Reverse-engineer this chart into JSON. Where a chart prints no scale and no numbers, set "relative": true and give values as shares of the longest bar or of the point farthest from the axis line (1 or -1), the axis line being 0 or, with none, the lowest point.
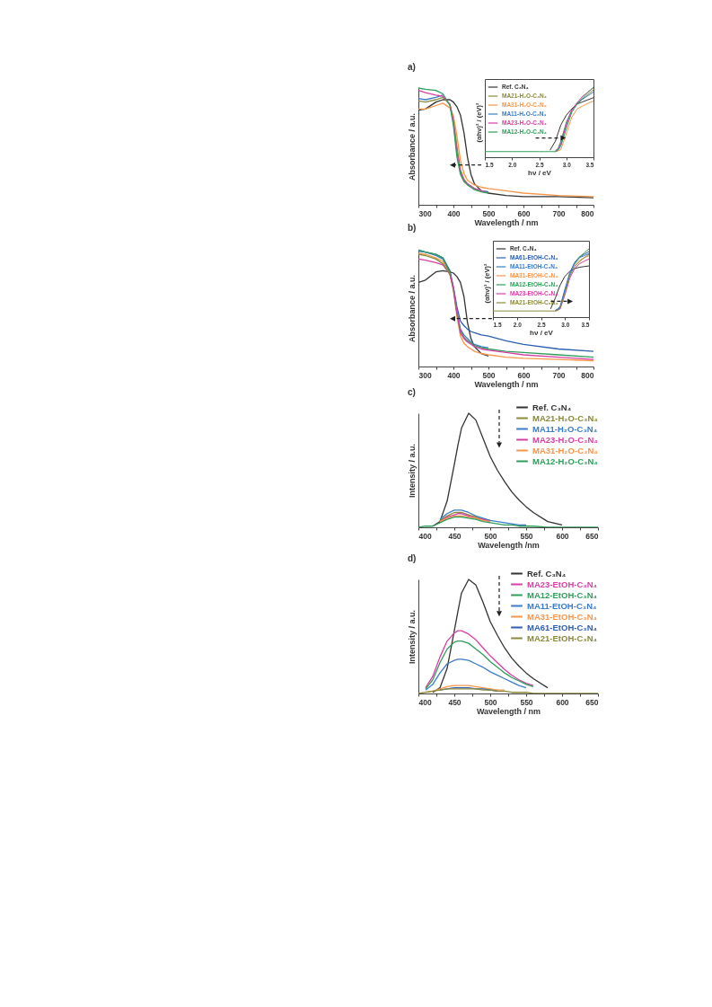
{
  "chart_data": [
    {
      "type": "line",
      "title": "a)",
      "xlabel": "Wavelength / nm",
      "ylabel": "Absorbance / a.u.",
      "relative": true,
      "tick_labels": "x",
      "xlim": [
        300,
        800
      ],
      "xticks": [
        300,
        {
          "value": 350,
          "label": null
        },
        400,
        {
          "value": 450,
          "label": null
        },
        500,
        {
          "value": 550,
          "label": null
        },
        600,
        {
          "value": 650,
          "label": null
        },
        700,
        {
          "value": 750,
          "label": null
        },
        800
      ],
      "x": [
        300,
        320,
        350,
        370,
        390,
        400,
        410,
        420,
        430,
        440,
        450,
        460,
        480,
        500,
        550,
        600,
        700,
        800
      ],
      "series": [
        {
          "color": "#333333",
          "values": [
            0.81,
            0.82,
            0.88,
            0.9,
            0.9,
            0.88,
            0.84,
            0.77,
            0.62,
            0.41,
            0.26,
            0.18,
            0.12,
            0.1,
            0.08,
            0.07,
            0.07,
            0.06
          ]
        },
        {
          "color": "#8a8a3a",
          "values": [
            0.89,
            0.88,
            0.9,
            0.92,
            0.86,
            0.74,
            0.5,
            0.3,
            0.22,
            0.18,
            0.16,
            0.14,
            0.12,
            0.11,
            null,
            null,
            null,
            null
          ]
        },
        {
          "color": "#f7964a",
          "values": [
            0.82,
            0.82,
            0.85,
            0.87,
            0.83,
            0.76,
            0.59,
            0.38,
            0.27,
            0.21,
            0.19,
            0.17,
            0.15,
            0.14,
            0.12,
            0.1,
            0.08,
            0.07
          ]
        },
        {
          "color": "#3a7cc8",
          "values": [
            0.91,
            0.9,
            0.92,
            0.94,
            null,
            null,
            null,
            null,
            null,
            null,
            null,
            null,
            0.12,
            0.11,
            null,
            null,
            null,
            null
          ]
        },
        {
          "color": "#d63fa5",
          "values": [
            0.98,
            0.96,
            0.94,
            0.93,
            0.86,
            0.71,
            0.45,
            0.28,
            0.21,
            0.18,
            0.16,
            0.14,
            0.12,
            0.1,
            null,
            null,
            null,
            null
          ]
        },
        {
          "color": "#2f9e5a",
          "values": [
            1.0,
            0.99,
            0.98,
            0.95,
            0.85,
            0.68,
            0.41,
            0.26,
            0.2,
            0.17,
            0.15,
            0.13,
            0.11,
            0.1,
            null,
            null,
            null,
            null
          ]
        }
      ]
    },
    {
      "type": "line",
      "xlabel": "hν / eV",
      "ylabel": "(αhν)² / (eV)²",
      "relative": true,
      "tick_labels": "x",
      "legend": "top left",
      "xlim": [
        1.5,
        3.5
      ],
      "xticks": [
        1.5,
        {
          "value": 2,
          "label": "2.0"
        },
        2.5,
        {
          "value": 3,
          "label": "3.0"
        },
        3.5
      ],
      "x": [
        1.5,
        2.0,
        2.5,
        2.6,
        2.7,
        2.8,
        2.85,
        2.9,
        3.0,
        3.1,
        3.2,
        3.3,
        3.4,
        3.5
      ],
      "series": [
        {
          "name": "Ref. C₃N₄",
          "color": "#333333",
          "values": [
            null,
            null,
            null,
            null,
            0.1,
            0.23,
            0.35,
            0.46,
            0.6,
            0.69,
            0.76,
            0.79,
            0.82,
            0.85
          ]
        },
        {
          "name": "MA21-H₂O-C₃N₄",
          "color": "#8a8a3a",
          "values": [
            null,
            null,
            null,
            null,
            null,
            0.09,
            0.13,
            0.23,
            0.5,
            0.67,
            0.76,
            0.83,
            0.9,
            0.96
          ]
        },
        {
          "name": "MA31-H₂O-C₃N₄",
          "color": "#f7964a",
          "values": [
            null,
            null,
            null,
            null,
            null,
            0.08,
            0.09,
            0.11,
            0.34,
            0.57,
            0.69,
            0.73,
            0.77,
            0.8
          ]
        },
        {
          "name": "MA11-H₂O-C₃N₄",
          "color": "#3a7cc8",
          "values": [
            null,
            null,
            null,
            null,
            null,
            0.09,
            0.12,
            0.21,
            0.48,
            0.67,
            0.77,
            0.83,
            0.88,
            0.93
          ]
        },
        {
          "name": "MA23-H₂O-C₃N₄",
          "color": "#d63fa5",
          "values": [
            null,
            null,
            null,
            null,
            null,
            0.08,
            0.11,
            0.18,
            0.46,
            0.67,
            0.78,
            0.87,
            0.93,
            0.99
          ]
        },
        {
          "name": "MA12-H₂O-C₃N₄",
          "color": "#2f9e5a",
          "values": [
            0.08,
            0.08,
            0.08,
            0.08,
            0.08,
            0.08,
            0.1,
            0.16,
            0.41,
            0.64,
            0.76,
            0.85,
            0.93,
            1.0
          ]
        }
      ]
    },
    {
      "type": "line",
      "title": "b)",
      "xlabel": "Wavelength / nm",
      "ylabel": "Absorbance / a.u.",
      "relative": true,
      "tick_labels": "x",
      "xlim": [
        300,
        800
      ],
      "xticks": [
        300,
        {
          "value": 350,
          "label": null
        },
        400,
        {
          "value": 450,
          "label": null
        },
        500,
        {
          "value": 550,
          "label": null
        },
        600,
        {
          "value": 650,
          "label": null
        },
        700,
        {
          "value": 750,
          "label": null
        },
        800
      ],
      "x": [
        300,
        320,
        350,
        370,
        390,
        400,
        410,
        420,
        430,
        440,
        450,
        460,
        480,
        500,
        550,
        600,
        700,
        800
      ],
      "series": [
        {
          "color": "#333333",
          "values": [
            0.72,
            0.74,
            0.81,
            0.82,
            0.81,
            0.8,
            0.77,
            0.72,
            0.6,
            0.38,
            0.24,
            0.17,
            0.11,
            0.09,
            null,
            null,
            null,
            null
          ]
        },
        {
          "color": "#2c5fb0",
          "values": [
            0.99,
            0.98,
            0.96,
            0.93,
            0.82,
            0.68,
            0.51,
            0.39,
            0.35,
            0.32,
            0.3,
            0.29,
            0.27,
            0.26,
            0.22,
            0.19,
            0.15,
            0.13
          ]
        },
        {
          "color": "#3a7cc8",
          "values": [
            0.99,
            0.98,
            0.95,
            0.92,
            0.8,
            0.67,
            0.47,
            0.32,
            0.27,
            0.24,
            0.21,
            0.19,
            0.17,
            0.16,
            null,
            null,
            null,
            null
          ]
        },
        {
          "color": "#f7964a",
          "values": [
            0.97,
            0.96,
            0.93,
            0.9,
            0.79,
            0.65,
            0.43,
            0.26,
            0.2,
            0.17,
            0.15,
            0.13,
            0.11,
            0.1,
            0.08,
            0.07,
            0.06,
            0.05
          ]
        },
        {
          "color": "#2f9e5a",
          "values": [
            1.0,
            0.98,
            0.96,
            0.93,
            0.8,
            0.66,
            0.46,
            0.31,
            0.25,
            0.22,
            0.2,
            0.18,
            0.16,
            0.15,
            0.13,
            0.12,
            0.1,
            0.08
          ]
        },
        {
          "color": "#d63fa5",
          "values": [
            0.92,
            0.91,
            0.89,
            0.87,
            0.79,
            0.67,
            0.46,
            0.29,
            0.24,
            0.21,
            0.19,
            0.17,
            0.15,
            0.14,
            0.12,
            0.1,
            0.08,
            0.06
          ]
        },
        {
          "color": "#8a8a3a",
          "values": [
            0.96,
            0.95,
            0.92,
            0.88,
            0.79,
            null,
            null,
            null,
            null,
            null,
            null,
            null,
            null,
            null,
            null,
            null,
            null,
            null
          ]
        }
      ]
    },
    {
      "type": "line",
      "xlabel": "hν / eV",
      "ylabel": "(αhν)² / (eV)²",
      "relative": true,
      "tick_labels": "x",
      "legend": "top left",
      "xlim": [
        1.5,
        3.5
      ],
      "xticks": [
        1.5,
        {
          "value": 2,
          "label": "2.0"
        },
        2.5,
        {
          "value": 3,
          "label": "3.0"
        },
        3.5
      ],
      "x": [
        1.5,
        2.0,
        2.5,
        2.6,
        2.7,
        2.8,
        2.85,
        2.9,
        3.0,
        3.1,
        3.2,
        3.3,
        3.4,
        3.5
      ],
      "series": [
        {
          "name": "Ref. C₃N₄",
          "color": "#333333",
          "values": [
            null,
            null,
            null,
            null,
            0.12,
            0.28,
            0.38,
            0.47,
            0.6,
            0.67,
            0.71,
            0.73,
            0.74,
            0.75
          ]
        },
        {
          "name": "MA61-EtOH-C₃N₄",
          "color": "#2c5fb0",
          "values": [
            null,
            null,
            null,
            null,
            null,
            0.1,
            0.12,
            0.16,
            0.41,
            0.65,
            0.8,
            0.88,
            0.92,
            0.96
          ]
        },
        {
          "name": "MA11-EtOH-C₃N₄",
          "color": "#3a7cc8",
          "values": [
            null,
            null,
            null,
            null,
            null,
            0.1,
            0.11,
            0.14,
            0.39,
            0.62,
            0.78,
            0.87,
            0.9,
            0.93
          ]
        },
        {
          "name": "MA31-EtOH-C₃N₄",
          "color": "#f7964a",
          "values": [
            null,
            null,
            null,
            null,
            null,
            null,
            null,
            null,
            null,
            null,
            0.75,
            0.83,
            0.87,
            0.9
          ]
        },
        {
          "name": "MA12-EtOH-C₃N₄",
          "color": "#2f9e5a",
          "values": [
            null,
            null,
            null,
            null,
            null,
            null,
            null,
            null,
            null,
            null,
            0.78,
            0.88,
            0.94,
            1.0
          ]
        },
        {
          "name": "MA23-EtOH-C₃N₄",
          "color": "#d63fa5",
          "values": [
            null,
            null,
            null,
            null,
            null,
            0.09,
            0.1,
            0.12,
            0.33,
            0.57,
            0.71,
            0.78,
            0.82,
            0.85
          ]
        },
        {
          "name": "MA21-EtOH-C₃N₄",
          "color": "#8a8a3a",
          "values": [
            0.09,
            0.09,
            0.09,
            0.09,
            0.09,
            0.09,
            0.1,
            0.13,
            0.35,
            0.6,
            0.74,
            0.81,
            0.87,
            0.92
          ]
        }
      ]
    },
    {
      "type": "line",
      "title": "c)",
      "xlabel": "Wavelength /nm",
      "ylabel": "Intensity / a.u.",
      "relative": true,
      "tick_labels": "x",
      "legend": "top right",
      "xlim": [
        400,
        650
      ],
      "xticks": [
        400,
        {
          "value": 425,
          "label": null
        },
        450,
        {
          "value": 475,
          "label": null
        },
        500,
        {
          "value": 525,
          "label": null
        },
        550,
        {
          "value": 575,
          "label": null
        },
        600,
        {
          "value": 625,
          "label": null
        },
        650
      ],
      "x": [
        400,
        410,
        420,
        430,
        440,
        450,
        455,
        460,
        470,
        480,
        490,
        500,
        510,
        520,
        530,
        540,
        550,
        560,
        580,
        600,
        650
      ],
      "series": [
        {
          "name": "Ref. C₃N₄",
          "color": "#333333",
          "values": [
            null,
            null,
            0.01,
            0.05,
            0.23,
            0.55,
            0.72,
            0.87,
            1.0,
            0.94,
            0.78,
            0.62,
            0.5,
            0.4,
            0.31,
            0.24,
            0.18,
            0.13,
            0.05,
            0.02,
            null
          ]
        },
        {
          "name": "MA21-H₂O-C₃N₄",
          "color": "#8a8a3a",
          "values": [
            null,
            null,
            null,
            0.06,
            0.1,
            0.13,
            0.13,
            0.13,
            0.11,
            0.09,
            0.07,
            0.06,
            null,
            null,
            null,
            null,
            null,
            null,
            null,
            null,
            null
          ]
        },
        {
          "name": "MA11-H₂O-C₃N₄",
          "color": "#3a7cc8",
          "values": [
            null,
            null,
            null,
            0.07,
            0.12,
            0.15,
            0.15,
            0.15,
            0.13,
            0.1,
            0.08,
            0.06,
            0.05,
            0.04,
            0.03,
            0.02,
            0.02,
            null,
            null,
            null,
            null
          ]
        },
        {
          "name": "MA23-H₂O-C₃N₄",
          "color": "#d63fa5",
          "values": [
            null,
            null,
            null,
            0.05,
            0.09,
            0.11,
            0.12,
            0.12,
            0.1,
            0.08,
            0.07,
            0.05,
            null,
            null,
            null,
            null,
            null,
            null,
            null,
            null,
            null
          ]
        },
        {
          "name": "MA31-H₂O-C₃N₄",
          "color": "#f7964a",
          "values": [
            null,
            null,
            null,
            0.05,
            0.08,
            0.1,
            0.1,
            0.1,
            0.09,
            0.08,
            0.06,
            0.05,
            null,
            null,
            null,
            null,
            null,
            null,
            null,
            null,
            null
          ]
        },
        {
          "name": "MA12-H₂O-C₃N₄",
          "color": "#2f9e5a",
          "values": [
            0,
            0.01,
            0.01,
            0.04,
            0.07,
            0.09,
            0.09,
            0.09,
            0.08,
            0.07,
            0.05,
            0.04,
            0.03,
            0.02,
            0.02,
            0.01,
            0.01,
            0.01,
            0,
            0,
            0
          ]
        }
      ]
    },
    {
      "type": "line",
      "title": "d)",
      "xlabel": "Wavelength / nm",
      "ylabel": "Intensity / a.u.",
      "relative": true,
      "tick_labels": "x",
      "legend": "top right",
      "xlim": [
        400,
        650
      ],
      "xticks": [
        400,
        {
          "value": 425,
          "label": null
        },
        450,
        {
          "value": 475,
          "label": null
        },
        500,
        {
          "value": 525,
          "label": null
        },
        550,
        {
          "value": 575,
          "label": null
        },
        600,
        {
          "value": 625,
          "label": null
        },
        650
      ],
      "x": [
        400,
        410,
        420,
        430,
        440,
        450,
        455,
        460,
        470,
        480,
        490,
        500,
        510,
        520,
        530,
        540,
        550,
        560,
        580,
        600,
        650
      ],
      "series": [
        {
          "name": "Ref. C₃N₄",
          "color": "#333333",
          "values": [
            null,
            null,
            0.01,
            0.05,
            0.22,
            0.55,
            0.72,
            0.88,
            1.0,
            0.95,
            0.8,
            0.63,
            0.51,
            0.4,
            0.31,
            0.24,
            0.18,
            0.13,
            0.05,
            null,
            null
          ]
        },
        {
          "name": "MA23-EtOH-C₃N₄",
          "color": "#d63fa5",
          "values": [
            null,
            0.05,
            0.15,
            0.32,
            0.46,
            0.53,
            0.55,
            0.55,
            0.52,
            0.47,
            0.4,
            0.33,
            0.27,
            0.21,
            0.16,
            0.12,
            0.09,
            0.07,
            null,
            null,
            null
          ]
        },
        {
          "name": "MA12-EtOH-C₃N₄",
          "color": "#2f9e5a",
          "values": [
            null,
            0.04,
            0.12,
            0.27,
            0.39,
            0.45,
            0.46,
            0.46,
            0.44,
            0.39,
            0.34,
            0.28,
            0.23,
            0.18,
            0.14,
            0.11,
            0.08,
            0.06,
            null,
            null,
            null
          ]
        },
        {
          "name": "MA11-EtOH-C₃N₄",
          "color": "#3a7cc8",
          "values": [
            null,
            0.03,
            0.08,
            0.18,
            0.26,
            0.29,
            0.3,
            0.3,
            0.29,
            0.26,
            0.23,
            0.19,
            0.16,
            0.13,
            0.1,
            0.07,
            0.05,
            null,
            null,
            null,
            null
          ]
        },
        {
          "name": "MA31-EtOH-C₃N₄",
          "color": "#f7964a",
          "values": [
            null,
            0.01,
            0.02,
            0.04,
            0.06,
            0.07,
            0.07,
            0.07,
            0.07,
            0.06,
            0.05,
            0.04,
            0.03,
            0.03,
            null,
            null,
            null,
            null,
            null,
            null,
            null
          ]
        },
        {
          "name": "MA61-EtOH-C₃N₄",
          "color": "#2c5fb0",
          "values": [
            null,
            null,
            null,
            0.03,
            0.04,
            0.05,
            0.05,
            0.05,
            0.05,
            0.04,
            0.04,
            0.03,
            0.02,
            null,
            null,
            null,
            null,
            null,
            null,
            null,
            null
          ]
        },
        {
          "name": "MA21-EtOH-C₃N₄",
          "color": "#8a8a3a",
          "values": [
            0,
            0.01,
            0.02,
            0.03,
            0.04,
            0.04,
            0.04,
            0.04,
            0.04,
            0.04,
            0.03,
            0.03,
            0.02,
            0.02,
            0.01,
            0.01,
            0.01,
            0,
            0,
            0,
            0
          ]
        }
      ]
    }
  ]
}
